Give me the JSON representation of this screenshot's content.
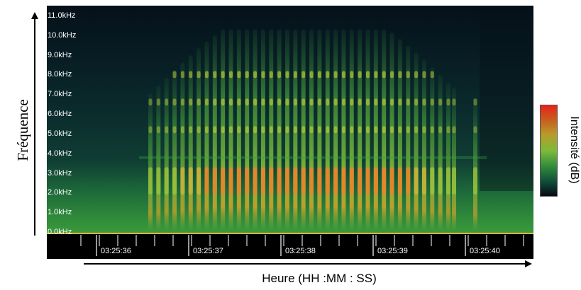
{
  "chart_data": {
    "type": "heatmap",
    "title": "",
    "xlabel": "Heure (HH :MM : SS)",
    "ylabel": "Fréquence",
    "colorbar_label": "Intensité (dB)",
    "y_ticks": [
      "0.0kHz",
      "1.0kHz",
      "2.0kHz",
      "3.0kHz",
      "4.0kHz",
      "5.0kHz",
      "6.0kHz",
      "7.0kHz",
      "8.0kHz",
      "9.0kHz",
      "10.0kHz",
      "11.0kHz"
    ],
    "y_range_khz": [
      0,
      11.5
    ],
    "x_ticks": [
      "03:25:36",
      "03:25:37",
      "03:25:38",
      "03:25:39",
      "03:25:40"
    ],
    "colormap": [
      "#060a12",
      "#0f4a3a",
      "#2f8a3a",
      "#7dbb3a",
      "#b99a2a",
      "#e8231a"
    ],
    "background_color": "#000000",
    "baseline_color": "#e0b23a"
  }
}
